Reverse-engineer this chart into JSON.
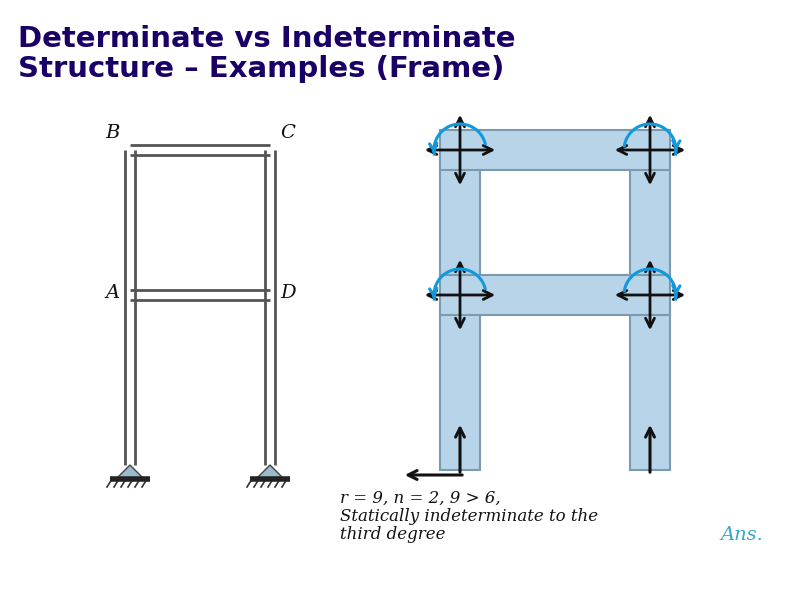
{
  "title_line1": "Determinate vs Indeterminate",
  "title_line2": "Structure – Examples (Frame)",
  "title_color": "#1a0066",
  "title_fontsize": 21,
  "title_fontweight": "bold",
  "bg_color": "#ffffff",
  "formula_line1": "r = 9, n = 2, 9 > 6,",
  "formula_line2": "Statically indeterminate to the",
  "formula_line3": "third degree",
  "ans_text": "Ans.",
  "ans_color": "#33AACC",
  "frame_fill": "#b8d4e8",
  "frame_edge": "#7a9ab0",
  "line_color": "#555555",
  "arrow_black": "#111111",
  "arrow_blue": "#1199DD"
}
